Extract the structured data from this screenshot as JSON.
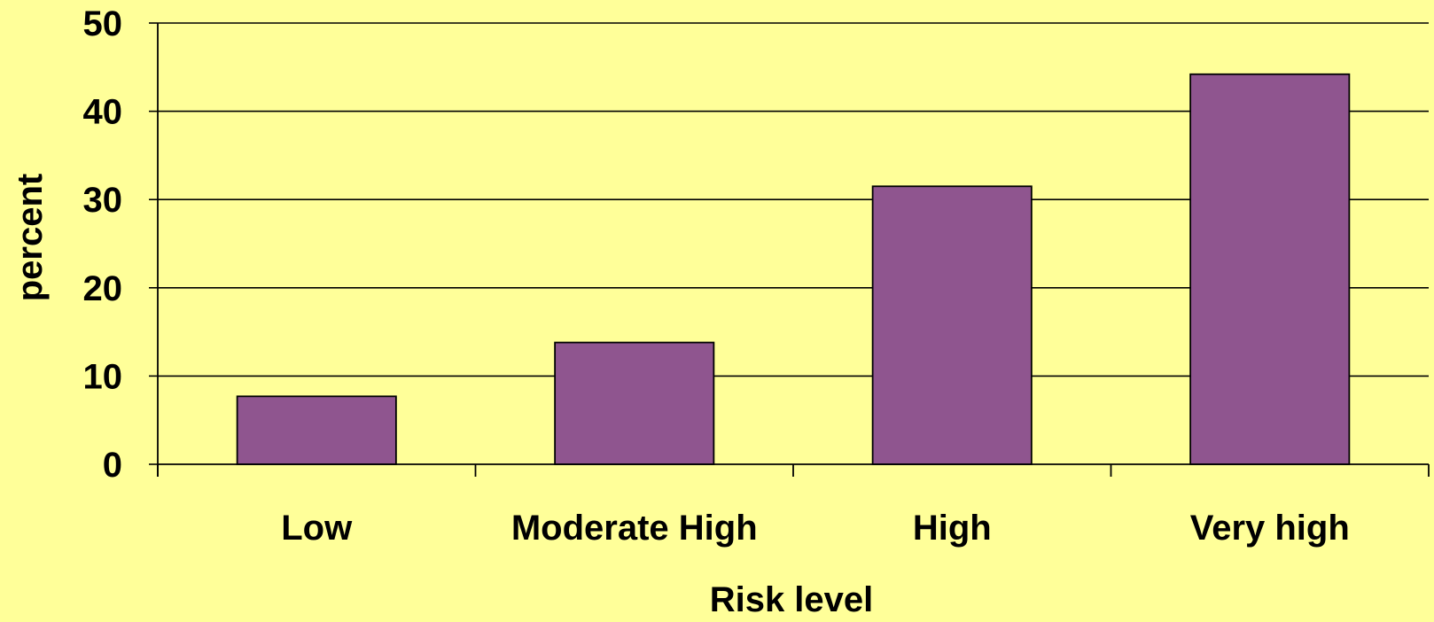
{
  "colors": {
    "background": "#FFFF99",
    "bar_fill": "#8F558F",
    "bar_stroke": "#000000",
    "gridline": "#000000",
    "axis": "#000000",
    "text": "#000000"
  },
  "chart_data": {
    "type": "bar",
    "title": "",
    "xlabel": "Risk level",
    "ylabel": "percent",
    "categories": [
      "Low",
      "Moderate High",
      "High",
      "Very high"
    ],
    "values": [
      7.7,
      13.8,
      31.5,
      44.2
    ],
    "ylim": [
      0,
      50
    ],
    "yticks": [
      0,
      10,
      20,
      30,
      40,
      50
    ],
    "ytick_labels": [
      "0",
      "10",
      "20",
      "30",
      "40",
      "50"
    ],
    "grid": true,
    "legend": "none"
  }
}
